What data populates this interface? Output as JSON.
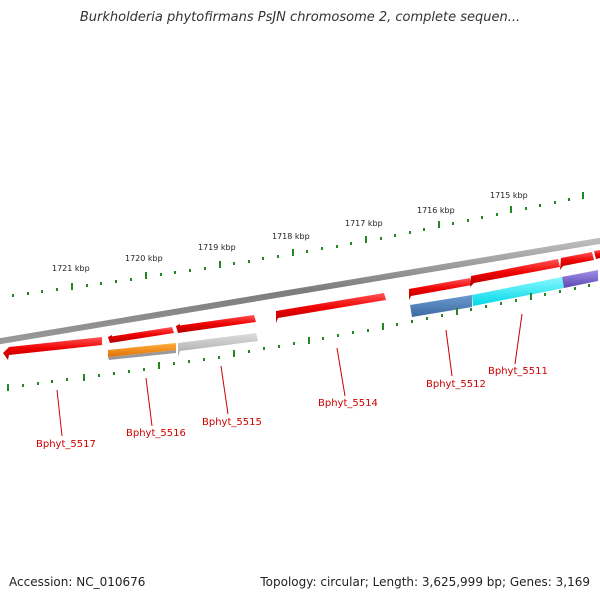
{
  "title": "Burkholderia phytofirmans PsJN chromosome 2, complete sequen...",
  "footer": {
    "accession": "Accession: NC_010676",
    "summary": "Topology: circular; Length: 3,625,999 bp; Genes: 3,169"
  },
  "scale_labels": [
    "1721 kbp",
    "1720 kbp",
    "1719 kbp",
    "1718 kbp",
    "1717 kbp",
    "1716 kbp",
    "1715 kbp"
  ],
  "gene_labels": [
    "Bphyt_5517",
    "Bphyt_5516",
    "Bphyt_5515",
    "Bphyt_5514",
    "Bphyt_5512",
    "Bphyt_5511"
  ],
  "colors": {
    "gene_red": "#ee1111",
    "gene_orange": "#ff8c00",
    "gene_gray": "#b8b8b8",
    "gene_steel": "#4a7ab0",
    "gene_cyan": "#11e8f0",
    "gene_purple": "#7a60c8",
    "backbone": "#8a8a8a",
    "tick": "#228822",
    "label": "#cc0000"
  }
}
